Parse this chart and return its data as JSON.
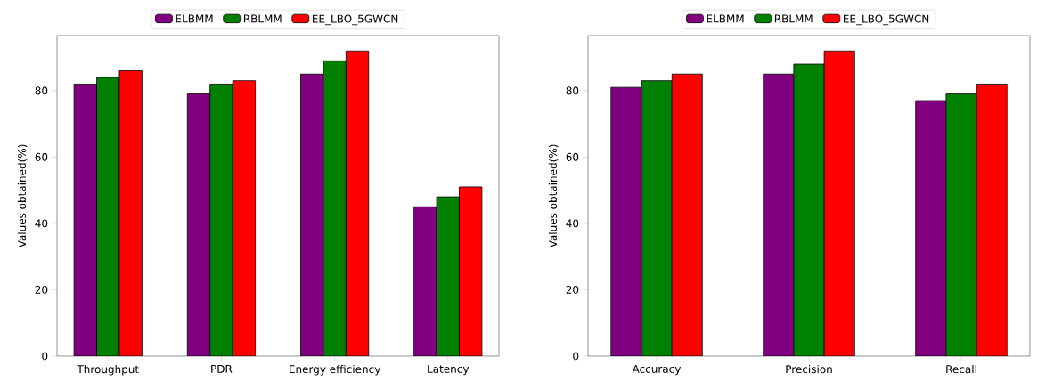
{
  "chart_data": [
    {
      "type": "bar",
      "ylabel": "Values obtained(%)",
      "categories": [
        "Throughput",
        "PDR",
        "Energy efficiency",
        "Latency"
      ],
      "series": [
        {
          "name": "ELBMM",
          "color": "#800080",
          "values": [
            82,
            79,
            85,
            45
          ]
        },
        {
          "name": "RBLMM",
          "color": "#008000",
          "values": [
            84,
            82,
            89,
            48
          ]
        },
        {
          "name": "EE_LBO_5GWCN",
          "color": "#ff0000",
          "values": [
            86,
            83,
            92,
            51
          ]
        }
      ],
      "ylim": [
        0,
        96.6
      ],
      "yticks": [
        0,
        20,
        40,
        60,
        80
      ],
      "legend": "top",
      "grid": false
    },
    {
      "type": "bar",
      "ylabel": "Values obtained(%)",
      "categories": [
        "Accuracy",
        "Precision",
        "Recall"
      ],
      "series": [
        {
          "name": "ELBMM",
          "color": "#800080",
          "values": [
            81,
            85,
            77
          ]
        },
        {
          "name": "RBLMM",
          "color": "#008000",
          "values": [
            83,
            88,
            79
          ]
        },
        {
          "name": "EE_LBO_5GWCN",
          "color": "#ff0000",
          "values": [
            85,
            92,
            82
          ]
        }
      ],
      "ylim": [
        0,
        96.6
      ],
      "yticks": [
        0,
        20,
        40,
        60,
        80
      ],
      "legend": "top",
      "grid": false
    }
  ]
}
